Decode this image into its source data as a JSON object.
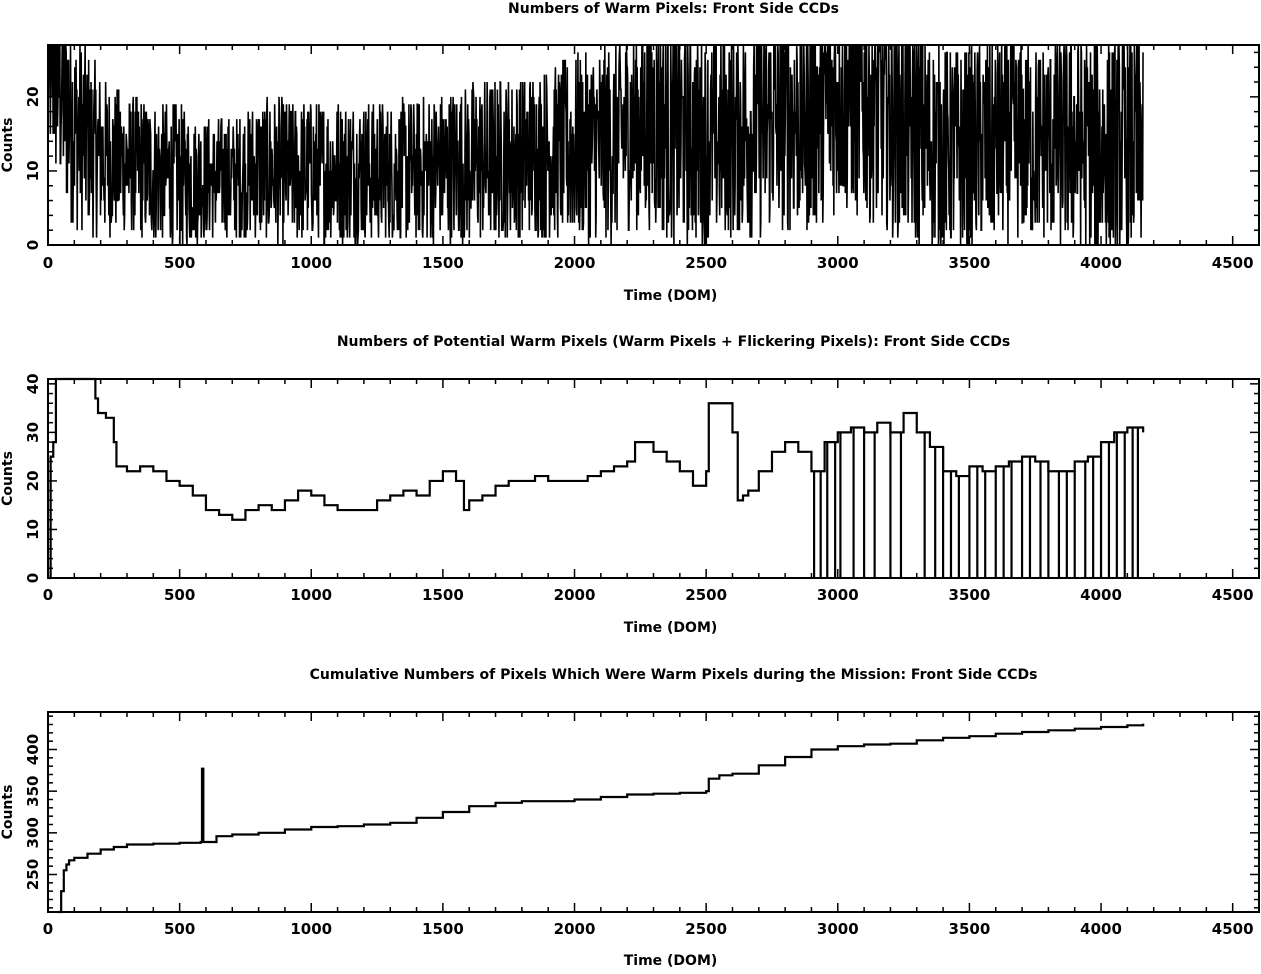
{
  "chart_data": [
    {
      "type": "line",
      "title": "Numbers of Warm Pixels: Front Side CCDs",
      "xlabel": "Time (DOM)",
      "ylabel": "Counts",
      "xlim": [
        0,
        4600
      ],
      "ylim": [
        0,
        27
      ],
      "xticks": [
        0,
        500,
        1000,
        1500,
        2000,
        2500,
        3000,
        3500,
        4000,
        4500
      ],
      "yticks": [
        0,
        10,
        20
      ],
      "grid": false,
      "color": "#000000",
      "series": [
        {
          "x": [
            0,
            50,
            100,
            150,
            200,
            300,
            400,
            500,
            600,
            700,
            800,
            1000,
            1200,
            1400,
            1600,
            1800,
            2000,
            2150,
            2200,
            2300,
            2400,
            2500,
            2600,
            2700,
            2800,
            2900,
            3000,
            3100,
            3200,
            3300,
            3400,
            3500,
            3600,
            3700,
            3800,
            3900,
            4000,
            4100,
            4160
          ],
          "y": [
            27,
            22,
            16,
            14,
            12,
            11,
            10,
            9,
            9,
            9,
            10,
            10,
            10,
            10,
            11,
            12,
            13,
            14,
            16,
            17,
            15,
            14,
            15,
            16,
            17,
            18,
            21,
            20,
            18,
            15,
            13,
            13,
            14,
            14,
            14,
            14,
            13,
            13,
            14
          ],
          "spread": [
            12,
            12,
            10,
            9,
            8,
            7,
            7,
            7,
            6,
            6,
            7,
            7,
            7,
            7,
            8,
            8,
            9,
            10,
            10,
            11,
            11,
            10,
            10,
            11,
            11,
            12,
            12,
            12,
            12,
            11,
            10,
            10,
            10,
            10,
            10,
            11,
            11,
            11,
            11
          ]
        }
      ]
    },
    {
      "type": "line",
      "title": "Numbers of Potential Warm Pixels (Warm Pixels + Flickering Pixels): Front Side CCDs",
      "xlabel": "Time (DOM)",
      "ylabel": "Counts",
      "xlim": [
        0,
        4600
      ],
      "ylim": [
        0,
        41
      ],
      "xticks": [
        0,
        500,
        1000,
        1500,
        2000,
        2500,
        3000,
        3500,
        4000,
        4500
      ],
      "yticks": [
        0,
        10,
        20,
        30,
        40
      ],
      "grid": false,
      "color": "#000000",
      "series": [
        {
          "x": [
            0,
            10,
            20,
            30,
            180,
            190,
            220,
            250,
            260,
            300,
            350,
            400,
            450,
            500,
            550,
            600,
            650,
            700,
            750,
            800,
            850,
            900,
            950,
            1000,
            1050,
            1100,
            1150,
            1200,
            1250,
            1300,
            1350,
            1400,
            1450,
            1500,
            1550,
            1580,
            1600,
            1650,
            1700,
            1750,
            1800,
            1850,
            1900,
            1950,
            2000,
            2050,
            2100,
            2150,
            2200,
            2230,
            2280,
            2300,
            2350,
            2400,
            2450,
            2500,
            2510,
            2550,
            2600,
            2620,
            2640,
            2660,
            2700,
            2750,
            2800,
            2850,
            2900,
            2950,
            3000,
            3050,
            3100,
            3150,
            3200,
            3250,
            3300,
            3350,
            3400,
            3450,
            3500,
            3550,
            3600,
            3650,
            3700,
            3750,
            3800,
            3850,
            3900,
            3950,
            4000,
            4050,
            4100,
            4150,
            4160
          ],
          "y": [
            0,
            25,
            28,
            41,
            37,
            34,
            33,
            28,
            23,
            22,
            23,
            22,
            20,
            19,
            17,
            14,
            13,
            12,
            14,
            15,
            14,
            16,
            18,
            17,
            15,
            14,
            14,
            14,
            16,
            17,
            18,
            17,
            20,
            22,
            20,
            14,
            16,
            17,
            19,
            20,
            20,
            21,
            20,
            20,
            20,
            21,
            22,
            23,
            24,
            28,
            28,
            26,
            24,
            22,
            19,
            22,
            36,
            36,
            30,
            16,
            17,
            18,
            22,
            26,
            28,
            26,
            22,
            28,
            30,
            31,
            30,
            32,
            30,
            34,
            30,
            27,
            22,
            21,
            23,
            22,
            23,
            24,
            25,
            24,
            22,
            22,
            24,
            25,
            28,
            30,
            31,
            31,
            30
          ]
        }
      ],
      "dropouts_to_zero": [
        2910,
        2935,
        2960,
        2990,
        3010,
        3060,
        3100,
        3140,
        3200,
        3240,
        3330,
        3370,
        3400,
        3430,
        3460,
        3500,
        3530,
        3560,
        3600,
        3630,
        3660,
        3700,
        3730,
        3770,
        3800,
        3840,
        3870,
        3900,
        3940,
        3970,
        4000,
        4030,
        4060,
        4090,
        4120,
        4140
      ]
    },
    {
      "type": "line",
      "title": "Cumulative Numbers of Pixels Which Were Warm Pixels during the Mission: Front Side CCDs",
      "xlabel": "Time (DOM)",
      "ylabel": "Counts",
      "xlim": [
        0,
        4600
      ],
      "ylim": [
        205,
        445
      ],
      "xticks": [
        0,
        500,
        1000,
        1500,
        2000,
        2500,
        3000,
        3500,
        4000,
        4500
      ],
      "yticks": [
        250,
        300,
        350,
        400
      ],
      "grid": false,
      "color": "#000000",
      "series": [
        {
          "x": [
            40,
            50,
            60,
            70,
            80,
            100,
            150,
            200,
            250,
            300,
            350,
            400,
            500,
            580,
            585,
            590,
            640,
            700,
            800,
            900,
            1000,
            1100,
            1200,
            1300,
            1400,
            1500,
            1600,
            1700,
            1800,
            1900,
            2000,
            2100,
            2200,
            2300,
            2400,
            2500,
            2510,
            2550,
            2600,
            2700,
            2800,
            2900,
            3000,
            3100,
            3200,
            3300,
            3400,
            3500,
            3600,
            3700,
            3800,
            3900,
            4000,
            4100,
            4160
          ],
          "y": [
            205,
            230,
            255,
            262,
            267,
            270,
            275,
            280,
            283,
            286,
            286,
            287,
            288,
            289,
            377,
            289,
            296,
            298,
            300,
            304,
            307,
            308,
            310,
            312,
            318,
            325,
            332,
            336,
            338,
            338,
            340,
            343,
            346,
            347,
            348,
            350,
            365,
            369,
            371,
            381,
            391,
            400,
            404,
            406,
            407,
            411,
            414,
            416,
            419,
            421,
            423,
            425,
            427,
            429,
            431
          ]
        }
      ]
    }
  ]
}
